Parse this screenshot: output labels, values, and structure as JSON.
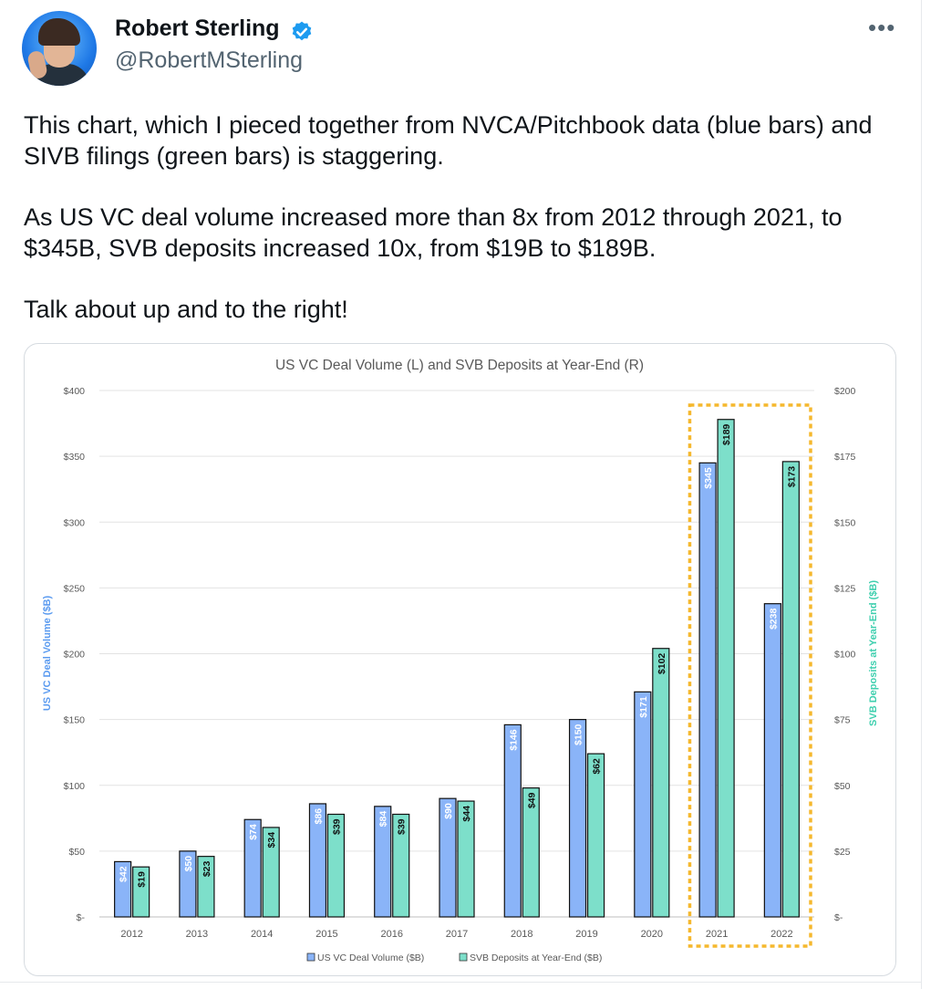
{
  "author": {
    "name": "Robert Sterling",
    "handle": "@RobertMSterling"
  },
  "icons": {
    "verified": "verified-badge-icon",
    "more": "more-options-icon",
    "avatar": "profile-avatar"
  },
  "more_label": "•••",
  "tweet": {
    "paragraphs": [
      "This chart, which I pieced together from NVCA/Pitchbook data (blue bars) and SIVB filings (green bars) is staggering.",
      "As US VC deal volume increased more than 8x from 2012 through 2021, to $345B, SVB deposits increased 10x, from $19B to $189B.",
      "Talk about up and to the right!"
    ]
  },
  "colors": {
    "verified": "#1d9bf0",
    "left_series": "#8ab4f8",
    "right_series": "#7ddfca",
    "highlight": "#f5b82e",
    "left_axis_title": "#5b9bf0",
    "right_axis_title": "#3ecfae"
  },
  "chart_data": {
    "type": "bar",
    "title": "US VC Deal Volume (L) and SVB Deposits at Year-End (R)",
    "categories": [
      "2012",
      "2013",
      "2014",
      "2015",
      "2016",
      "2017",
      "2018",
      "2019",
      "2020",
      "2021",
      "2022"
    ],
    "series": [
      {
        "name": "US VC Deal Volume ($B)",
        "axis": "left",
        "values": [
          42,
          50,
          74,
          86,
          84,
          90,
          146,
          150,
          171,
          345,
          238
        ],
        "labels": [
          "$42",
          "$50",
          "$74",
          "$86",
          "$84",
          "$90",
          "$146",
          "$150",
          "$171",
          "$345",
          "$238"
        ]
      },
      {
        "name": "SVB Deposits at Year-End ($B)",
        "axis": "right",
        "values": [
          19,
          23,
          34,
          39,
          39,
          44,
          49,
          62,
          102,
          189,
          173
        ],
        "labels": [
          "$19",
          "$23",
          "$34",
          "$39",
          "$39",
          "$44",
          "$49",
          "$62",
          "$102",
          "$189",
          "$173"
        ]
      }
    ],
    "ylabel": "US VC Deal Volume ($B)",
    "y2label": "SVB Deposits at Year-End ($B)",
    "ylim": [
      0,
      400
    ],
    "y2lim": [
      0,
      200
    ],
    "yticks": [
      "$-",
      "$50",
      "$100",
      "$150",
      "$200",
      "$250",
      "$300",
      "$350",
      "$400"
    ],
    "y2ticks": [
      "$-",
      "$25",
      "$50",
      "$75",
      "$100",
      "$125",
      "$150",
      "$175",
      "$200"
    ],
    "grid": true,
    "legend_position": "bottom",
    "highlight_categories": [
      "2021",
      "2022"
    ]
  }
}
